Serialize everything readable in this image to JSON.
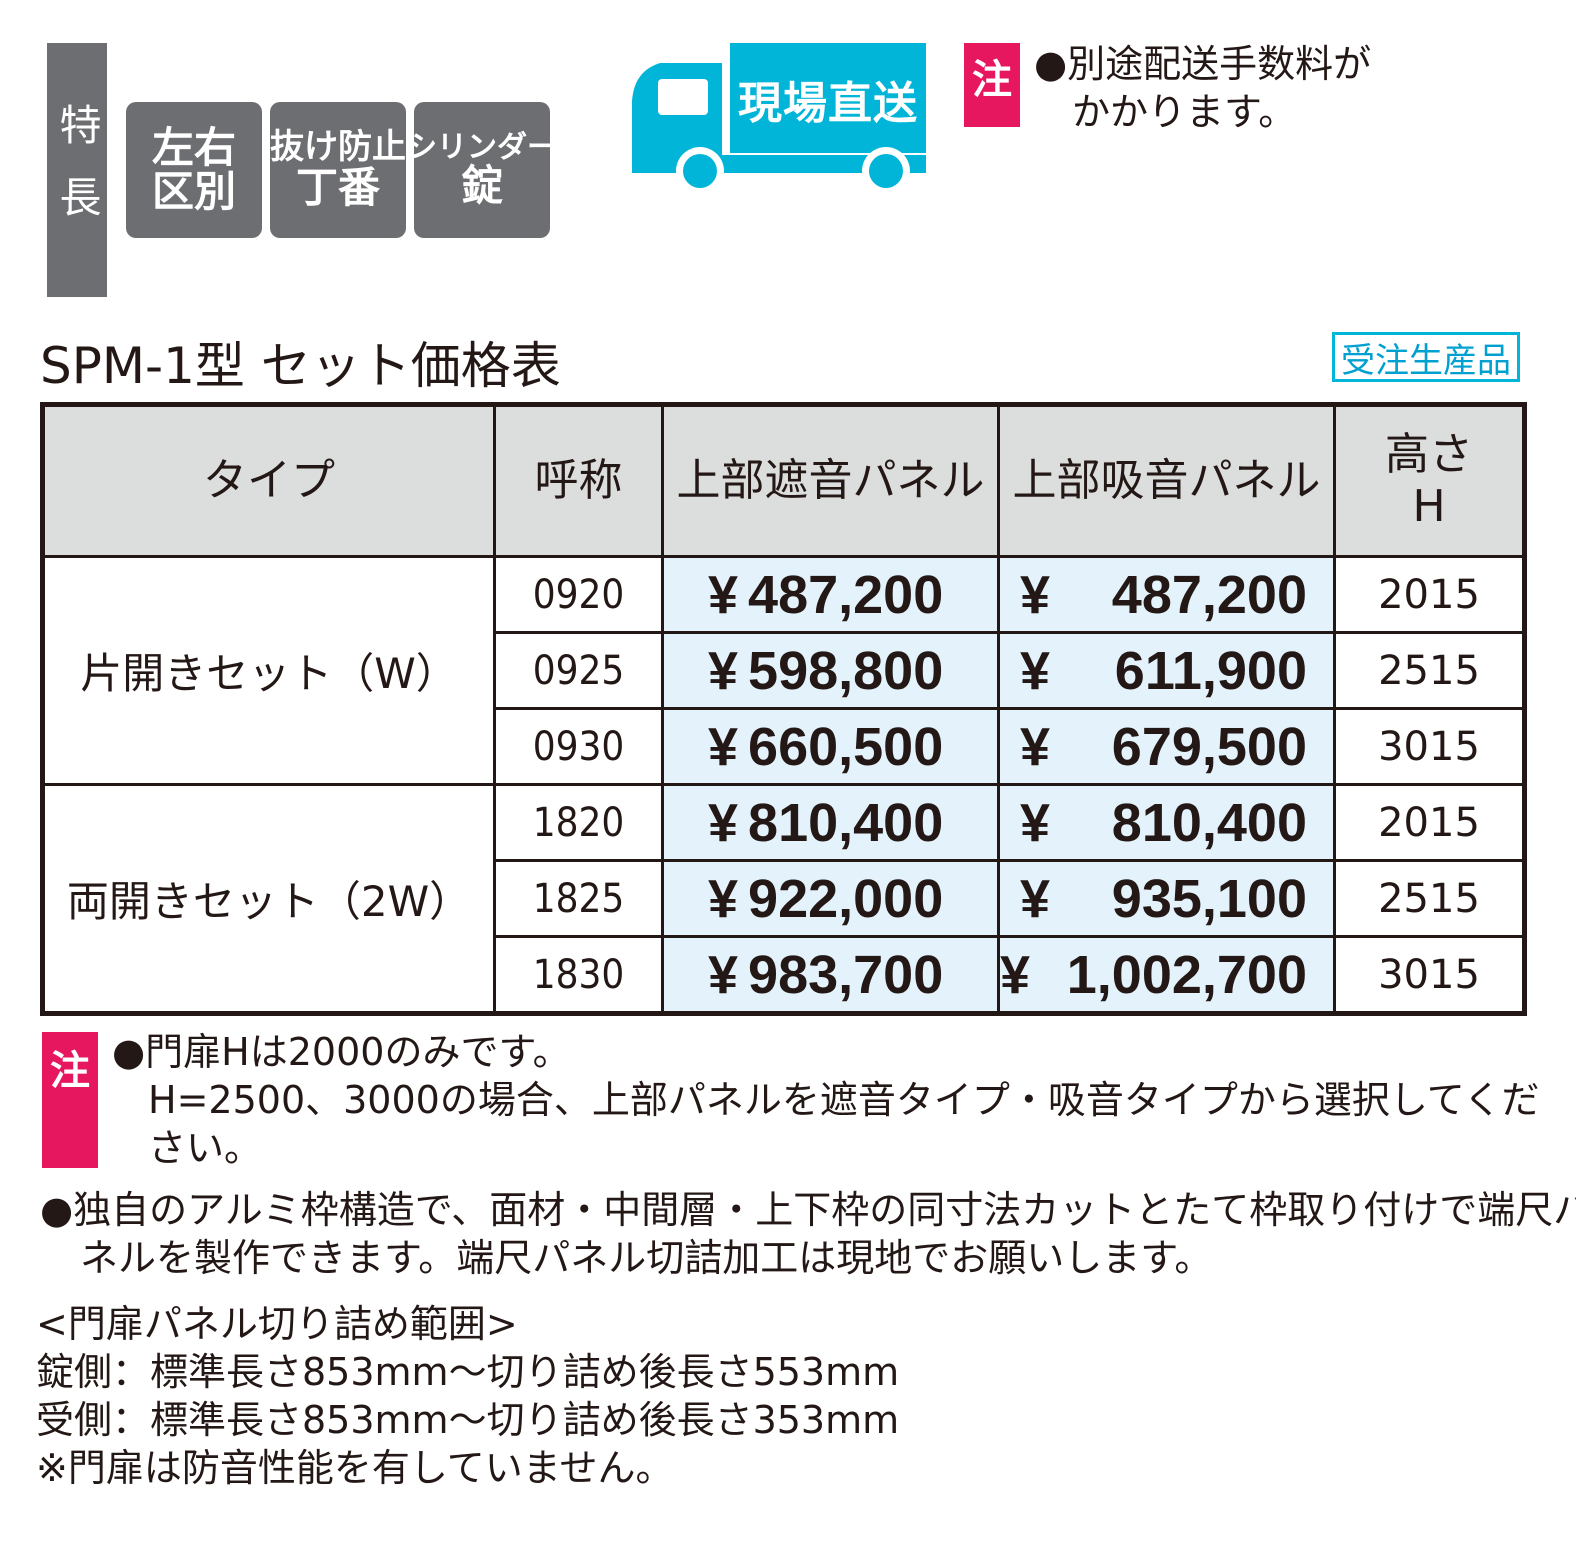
{
  "features": {
    "label": "特長",
    "badges": [
      {
        "line1": "左右",
        "line2": "区別"
      },
      {
        "line1": "抜け防止",
        "line2": "丁番"
      },
      {
        "line1": "シリンダー",
        "line2": "錠"
      }
    ]
  },
  "delivery": {
    "label": "現場直送",
    "icon": "truck-icon",
    "color": "#00b5d8"
  },
  "top_note": {
    "mark": "注",
    "lines": [
      "●別途配送手数料が",
      "かかります。"
    ]
  },
  "title": "SPM-1型 セット価格表",
  "order_badge": "受注生産品",
  "table": {
    "headers": {
      "type": "タイプ",
      "code": "呼称",
      "panel_sound_insulating": "上部遮音パネル",
      "panel_sound_absorbing": "上部吸音パネル",
      "height_line1": "高さ",
      "height_line2": "H"
    },
    "groups": [
      {
        "type": "片開きセット（W）",
        "rows": [
          {
            "code": "0920",
            "price1": "487,200",
            "price2": "487,200",
            "height": "2015"
          },
          {
            "code": "0925",
            "price1": "598,800",
            "price2": "611,900",
            "height": "2515"
          },
          {
            "code": "0930",
            "price1": "660,500",
            "price2": "679,500",
            "height": "3015"
          }
        ]
      },
      {
        "type": "両開きセット（2W）",
        "rows": [
          {
            "code": "1820",
            "price1": "810,400",
            "price2": "810,400",
            "height": "2015"
          },
          {
            "code": "1825",
            "price1": "922,000",
            "price2": "935,100",
            "height": "2515"
          },
          {
            "code": "1830",
            "price1": "983,700",
            "price2": "1,002,700",
            "height": "3015"
          }
        ]
      }
    ],
    "currency": "¥"
  },
  "bottom_note": {
    "mark": "注",
    "lines": [
      "●門扉Hは2000のみです。",
      "H=2500、3000の場合、上部パネルを遮音タイプ・吸音タイプから選択してくだ",
      "さい。"
    ]
  },
  "note2": {
    "lines": [
      "●独自のアルミ枠構造で、面材・中間層・上下枠の同寸法カットとたて枠取り付けで端尺パ",
      "ネルを製作できます。端尺パネル切詰加工は現地でお願いします。"
    ]
  },
  "cut_range": {
    "lines": [
      "<門扉パネル切り詰め範囲>",
      "錠側：標準長さ853mm～切り詰め後長さ553mm",
      "受側：標準長さ853mm～切り詰め後長さ353mm",
      "※門扉は防音性能を有していません。"
    ]
  }
}
